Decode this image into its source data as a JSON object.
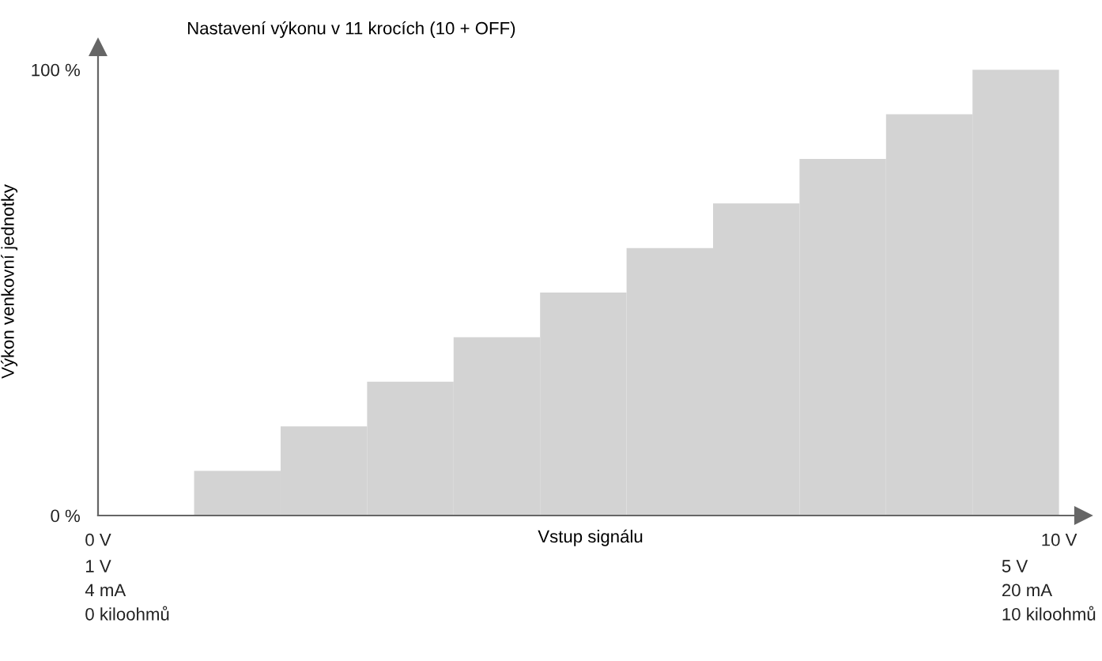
{
  "chart_data": {
    "type": "bar",
    "title": "Nastavení výkonu v 11 krocích (10 + OFF)",
    "xlabel": "Vstup signálu",
    "ylabel": "Výkon venkovní jednotky",
    "x": [
      1.45,
      2.35,
      3.25,
      4.15,
      5.05,
      5.95,
      6.85,
      7.75,
      8.65,
      9.55
    ],
    "values": [
      10,
      20,
      30,
      40,
      50,
      60,
      70,
      80,
      90,
      100
    ],
    "color": "#d3d3d3",
    "xlim": [
      0,
      10.25
    ],
    "xticks": [
      {
        "value": 0,
        "label": "0 V"
      },
      {
        "value": 10,
        "label": "10 V"
      }
    ],
    "annotations": [
      "1 V\n4 mA\n0 kiloohmů",
      "5 V\n20 mA\n10 kiloohmů"
    ],
    "ylim": [
      0,
      105
    ],
    "yticks": [
      {
        "value": 0,
        "label": "0 %"
      },
      {
        "value": 100,
        "label": "100 %"
      }
    ],
    "grid": false,
    "legend": false
  }
}
